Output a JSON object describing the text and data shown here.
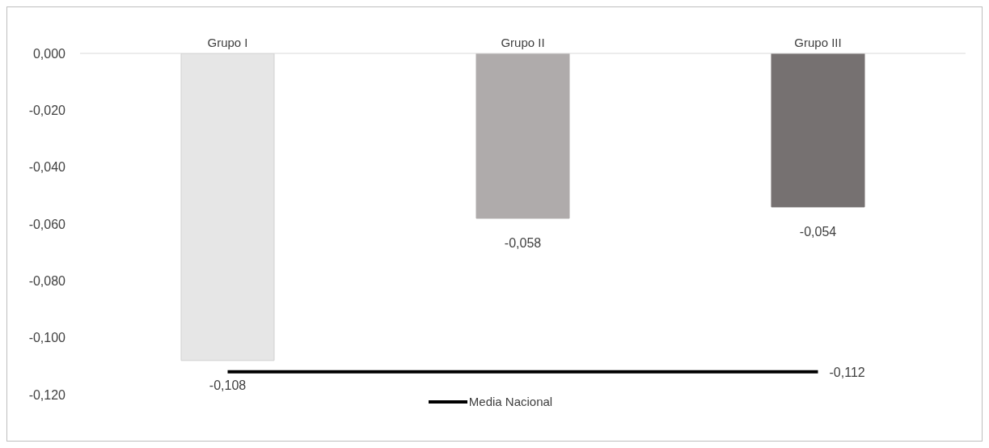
{
  "chart_data": {
    "type": "bar",
    "categories": [
      "Grupo I",
      "Grupo II",
      "Grupo III"
    ],
    "series": [
      {
        "colors": [
          "#e6e6e6",
          "#afabab",
          "#767171"
        ],
        "values": [
          -0.108,
          -0.058,
          -0.054
        ],
        "value_labels": [
          "-0,108",
          "-0,058",
          "-0,054"
        ]
      },
      {
        "type": "line",
        "name": "Media Nacional",
        "color": "#000000",
        "values": [
          -0.112,
          -0.112,
          -0.112
        ],
        "value_labels": [
          null,
          null,
          "-0,112"
        ]
      }
    ],
    "ylim": [
      -0.12,
      0
    ],
    "yticks": [
      {
        "value": 0,
        "label": "0,000"
      },
      {
        "value": -0.02,
        "label": "-0,020"
      },
      {
        "value": -0.04,
        "label": "-0,040"
      },
      {
        "value": -0.06,
        "label": "-0,060"
      },
      {
        "value": -0.08,
        "label": "-0,080"
      },
      {
        "value": -0.1,
        "label": "-0,100"
      },
      {
        "value": -0.12,
        "label": "-0,120"
      }
    ],
    "grid": false,
    "legend": "bottom",
    "marker": "none",
    "line_style": "solid"
  }
}
